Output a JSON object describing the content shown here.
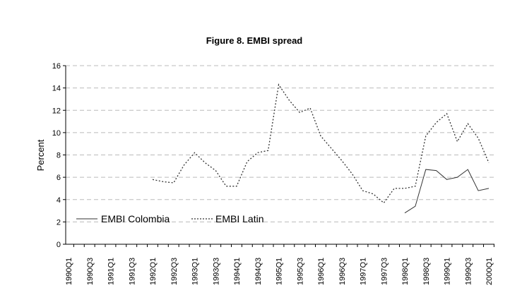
{
  "chart_data": {
    "type": "line",
    "title": "Figure 8. EMBI spread",
    "xlabel": "",
    "ylabel": "Percent",
    "ylim": [
      0,
      16
    ],
    "yticks": [
      0,
      2,
      4,
      6,
      8,
      10,
      12,
      14,
      16
    ],
    "grid": true,
    "legend": "bottom-left",
    "x": [
      "1990Q1",
      "1990Q2",
      "1990Q3",
      "1990Q4",
      "1991Q1",
      "1991Q2",
      "1991Q3",
      "1991Q4",
      "1992Q1",
      "1992Q2",
      "1992Q3",
      "1992Q4",
      "1993Q1",
      "1993Q2",
      "1993Q3",
      "1993Q4",
      "1994Q1",
      "1994Q2",
      "1994Q3",
      "1994Q4",
      "1995Q1",
      "1995Q2",
      "1995Q3",
      "1995Q4",
      "1996Q1",
      "1996Q2",
      "1996Q3",
      "1996Q4",
      "1997Q1",
      "1997Q2",
      "1997Q3",
      "1997Q4",
      "1998Q1",
      "1998Q2",
      "1998Q3",
      "1998Q4",
      "1999Q1",
      "1999Q2",
      "1999Q3",
      "1999Q4",
      "2000Q1"
    ],
    "series": [
      {
        "name": "EMBI Colombia",
        "style": "solid",
        "values": [
          null,
          null,
          null,
          null,
          null,
          null,
          null,
          null,
          null,
          null,
          null,
          null,
          null,
          null,
          null,
          null,
          null,
          null,
          null,
          null,
          null,
          null,
          null,
          null,
          null,
          null,
          null,
          null,
          null,
          null,
          null,
          null,
          2.8,
          3.4,
          6.7,
          6.6,
          5.8,
          6.0,
          6.7,
          4.8,
          5.0
        ]
      },
      {
        "name": "EMBI Latin",
        "style": "dotted",
        "values": [
          null,
          null,
          null,
          null,
          null,
          null,
          null,
          null,
          5.8,
          5.6,
          5.5,
          7.1,
          8.2,
          7.3,
          6.6,
          5.2,
          5.2,
          7.4,
          8.2,
          8.4,
          14.3,
          12.9,
          11.8,
          12.2,
          9.7,
          8.6,
          7.5,
          6.3,
          4.8,
          4.5,
          3.7,
          5.0,
          5.0,
          5.2,
          9.7,
          10.9,
          11.7,
          9.2,
          10.8,
          9.5,
          7.3
        ]
      }
    ]
  }
}
